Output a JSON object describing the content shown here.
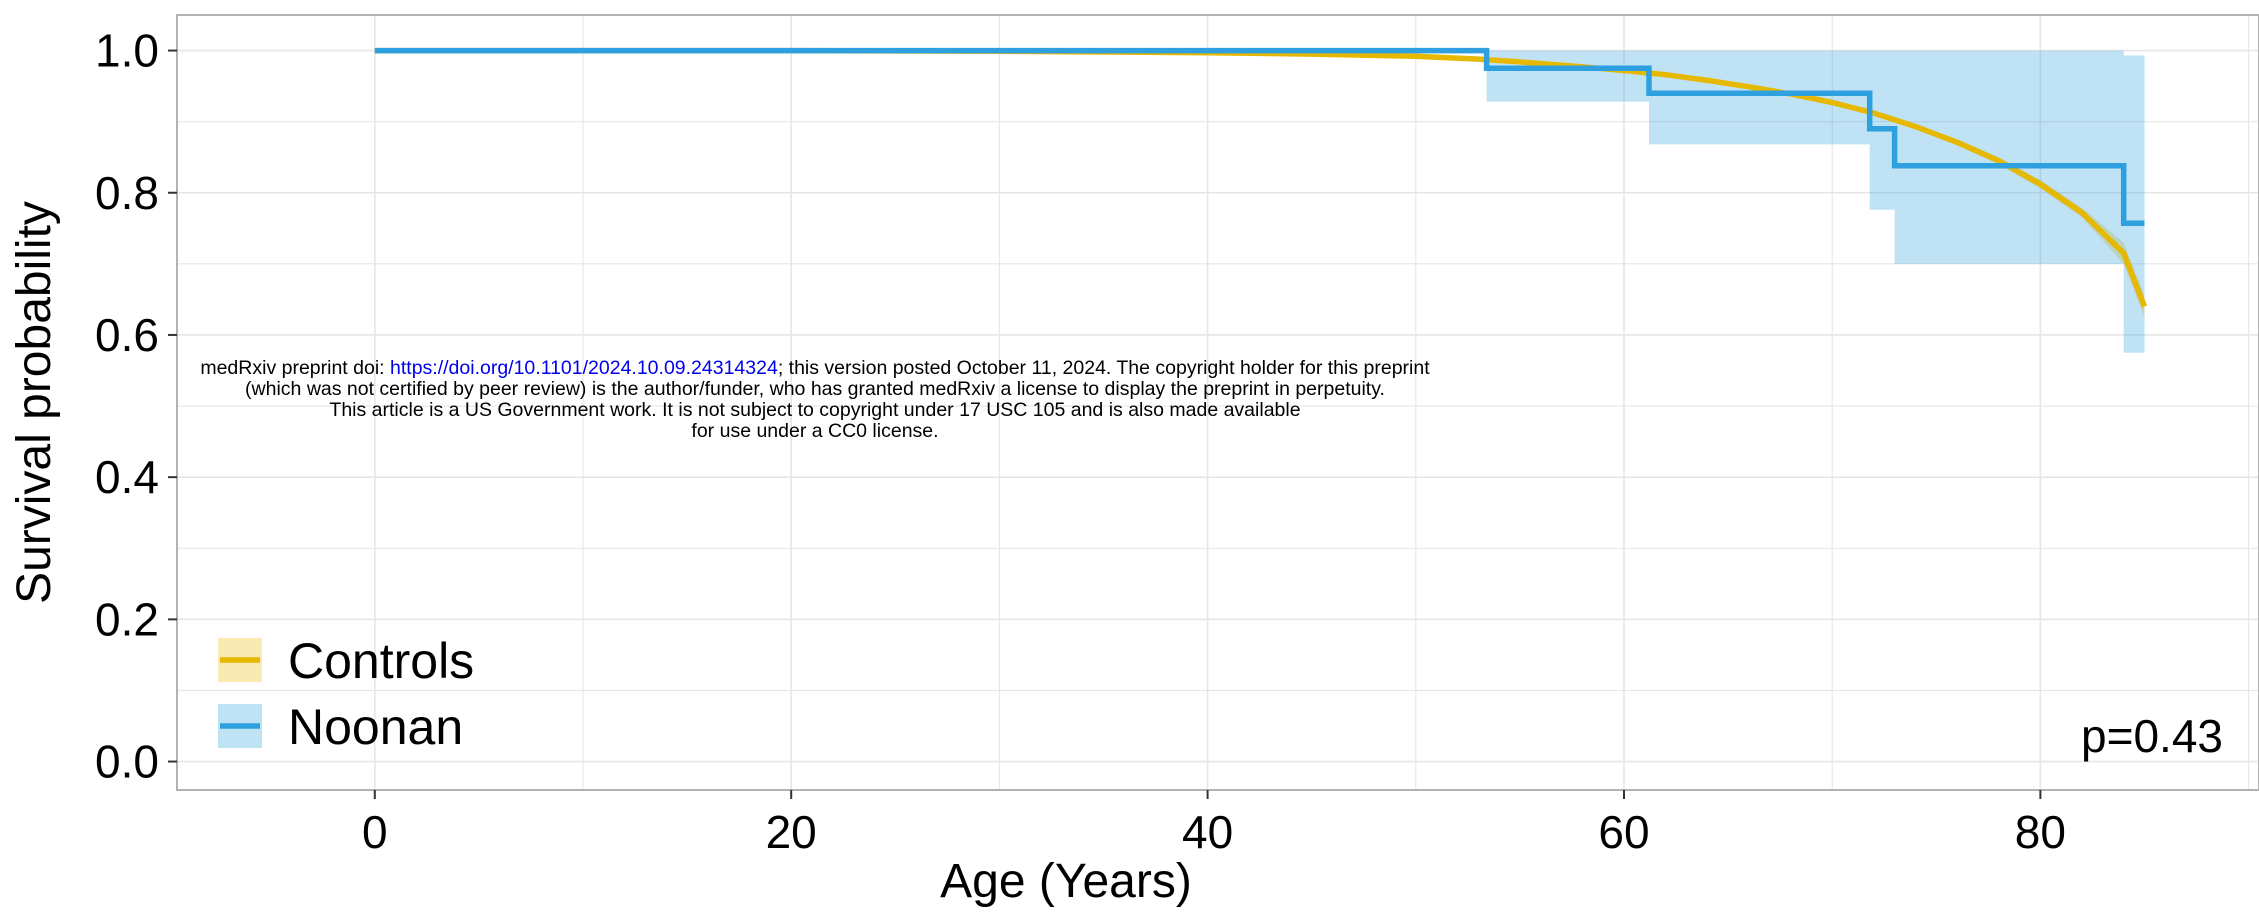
{
  "chart_data": {
    "type": "line",
    "xlabel": "Age (Years)",
    "ylabel": "Survival probability",
    "xlim": [
      -9.5,
      90.5
    ],
    "ylim": [
      -0.04,
      1.05
    ],
    "x_ticks": [
      0,
      20,
      40,
      60,
      80
    ],
    "y_ticks": [
      0.0,
      0.2,
      0.4,
      0.6,
      0.8,
      1.0
    ],
    "y_tick_labels": [
      "0.0",
      "0.2",
      "0.4",
      "0.6",
      "0.8",
      "1.0"
    ],
    "grid": true,
    "legend_placement": "bottom-left",
    "annotation": "p=0.43",
    "series": [
      {
        "name": "Controls",
        "color": "#E7B800",
        "step": false,
        "x": [
          0,
          10,
          20,
          30,
          40,
          45,
          50,
          53,
          55,
          58,
          60,
          62,
          64,
          66,
          68,
          70,
          72,
          74,
          76,
          78,
          80,
          82,
          84,
          85
        ],
        "y": [
          1.0,
          1.0,
          1.0,
          0.999,
          0.997,
          0.995,
          0.992,
          0.988,
          0.984,
          0.977,
          0.972,
          0.966,
          0.958,
          0.949,
          0.939,
          0.927,
          0.912,
          0.893,
          0.871,
          0.845,
          0.812,
          0.772,
          0.715,
          0.64
        ],
        "ci_lower": [
          1.0,
          1.0,
          1.0,
          0.999,
          0.996,
          0.994,
          0.991,
          0.987,
          0.983,
          0.976,
          0.971,
          0.964,
          0.956,
          0.947,
          0.936,
          0.924,
          0.909,
          0.889,
          0.867,
          0.84,
          0.806,
          0.765,
          0.7,
          0.625
        ],
        "ci_upper": [
          1.0,
          1.0,
          1.0,
          1.0,
          0.998,
          0.996,
          0.993,
          0.989,
          0.985,
          0.978,
          0.973,
          0.968,
          0.96,
          0.951,
          0.942,
          0.93,
          0.915,
          0.897,
          0.875,
          0.85,
          0.818,
          0.779,
          0.73,
          0.655
        ]
      },
      {
        "name": "Noonan",
        "color": "#2E9FDF",
        "step": true,
        "x": [
          0,
          53.4,
          61.2,
          71.8,
          73.0,
          84.0,
          85.0
        ],
        "y": [
          1.0,
          0.975,
          0.94,
          0.89,
          0.838,
          0.757,
          0.757
        ],
        "ci_lower": [
          1.0,
          0.928,
          0.868,
          0.776,
          0.7,
          0.575,
          0.575
        ],
        "ci_upper": [
          1.0,
          1.0,
          1.0,
          1.0,
          1.0,
          0.993,
          0.993
        ]
      }
    ]
  },
  "notice": {
    "line1_prefix": "medRxiv preprint doi: ",
    "line1_link": "https://doi.org/10.1101/2024.10.09.24314324",
    "line1_suffix": "; this version posted October 11, 2024. The copyright holder for this preprint",
    "line2": "(which was not certified by peer review) is the author/funder, who has granted medRxiv a license to display the preprint in perpetuity.",
    "line3": "This article is a US Government work. It is not subject to copyright under 17 USC 105 and is also made available",
    "line4": "for use under a CC0 license."
  }
}
